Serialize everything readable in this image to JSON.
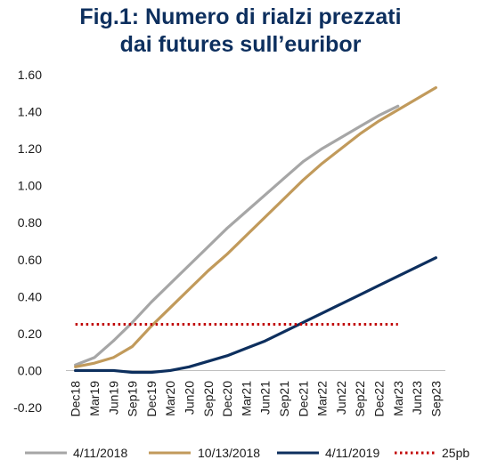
{
  "chart_data": {
    "type": "line",
    "title_lines": [
      "Fig.1: Numero di rialzi prezzati",
      "dai futures sull’euribor"
    ],
    "xlabel": "",
    "ylabel": "",
    "categories": [
      "Dec18",
      "Mar19",
      "Jun19",
      "Sep19",
      "Dec19",
      "Mar20",
      "Jun20",
      "Sep20",
      "Dec20",
      "Mar21",
      "Jun21",
      "Sep21",
      "Dec21",
      "Mar22",
      "Jun22",
      "Sep22",
      "Dec22",
      "Mar23",
      "Jun23",
      "Sep23"
    ],
    "ylim": [
      -0.2,
      1.6
    ],
    "yticks": [
      "-0.20",
      "0.00",
      "0.20",
      "0.40",
      "0.60",
      "0.80",
      "1.00",
      "1.20",
      "1.40",
      "1.60"
    ],
    "series": [
      {
        "name": "4/11/2018",
        "color": "#a6a6a6",
        "style": "solid",
        "values": [
          0.03,
          0.07,
          0.16,
          0.26,
          0.37,
          0.47,
          0.57,
          0.67,
          0.77,
          0.86,
          0.95,
          1.04,
          1.13,
          1.2,
          1.26,
          1.32,
          1.38,
          1.43,
          null,
          null
        ]
      },
      {
        "name": "10/13/2018",
        "color": "#c19a5b",
        "style": "solid",
        "values": [
          0.02,
          0.04,
          0.07,
          0.13,
          0.24,
          0.34,
          0.44,
          0.54,
          0.63,
          0.73,
          0.83,
          0.93,
          1.03,
          1.12,
          1.2,
          1.28,
          1.35,
          1.41,
          1.47,
          1.53
        ]
      },
      {
        "name": "4/11/2019",
        "color": "#0d2f5e",
        "style": "solid",
        "values": [
          0.0,
          0.0,
          0.0,
          -0.01,
          -0.01,
          0.0,
          0.02,
          0.05,
          0.08,
          0.12,
          0.16,
          0.21,
          0.26,
          0.31,
          0.36,
          0.41,
          0.46,
          0.51,
          0.56,
          0.61
        ]
      },
      {
        "name": "25pb",
        "color": "#c00000",
        "style": "dotted",
        "values": [
          0.25,
          0.25,
          0.25,
          0.25,
          0.25,
          0.25,
          0.25,
          0.25,
          0.25,
          0.25,
          0.25,
          0.25,
          0.25,
          0.25,
          0.25,
          0.25,
          0.25,
          0.25,
          null,
          null
        ]
      }
    ],
    "grid": false,
    "legend_position": "bottom"
  }
}
